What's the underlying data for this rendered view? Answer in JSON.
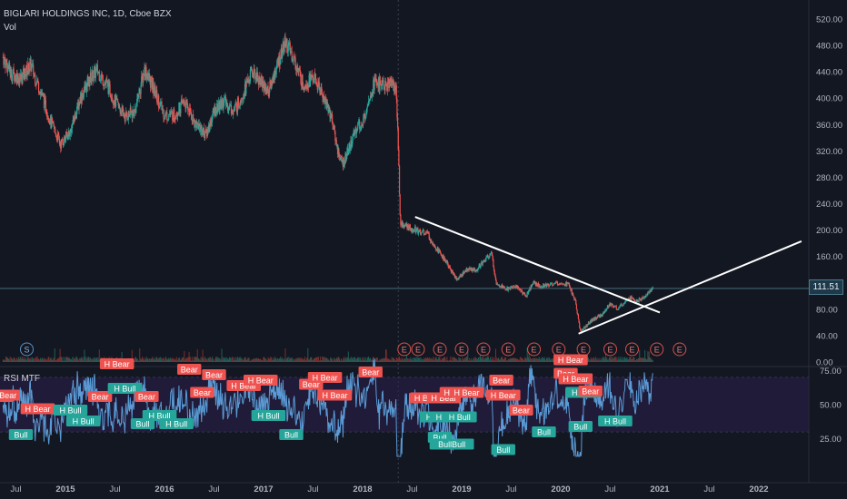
{
  "header": {
    "symbol_line": "BIGLARI HOLDINGS INC, 1D, Cboe BZX",
    "volume_label": "Vol"
  },
  "rsi_panel": {
    "title": "RSI MTF"
  },
  "last_price": "111.51",
  "chart_data": [
    {
      "type": "candlestick",
      "title": "BIGLARI HOLDINGS INC, 1D, Cboe BZX",
      "y_axis": {
        "ticks": [
          "0.00",
          "40.00",
          "80.00",
          "120.00",
          "160.00",
          "200.00",
          "240.00",
          "280.00",
          "320.00",
          "360.00",
          "400.00",
          "440.00",
          "480.00",
          "520.00"
        ],
        "range": [
          0,
          525
        ]
      },
      "x_axis": {
        "ticks": [
          "Jul",
          "2015",
          "Jul",
          "2016",
          "Jul",
          "2017",
          "Jul",
          "2018",
          "Jul",
          "2019",
          "Jul",
          "2020",
          "Jul",
          "2021",
          "Jul",
          "2022"
        ]
      },
      "price_path": [
        {
          "t": 2014.37,
          "p": 462
        },
        {
          "t": 2014.45,
          "p": 438
        },
        {
          "t": 2014.55,
          "p": 430
        },
        {
          "t": 2014.65,
          "p": 450
        },
        {
          "t": 2014.75,
          "p": 410
        },
        {
          "t": 2014.85,
          "p": 365
        },
        {
          "t": 2014.95,
          "p": 330
        },
        {
          "t": 2015.05,
          "p": 350
        },
        {
          "t": 2015.15,
          "p": 400
        },
        {
          "t": 2015.25,
          "p": 430
        },
        {
          "t": 2015.32,
          "p": 442
        },
        {
          "t": 2015.42,
          "p": 420
        },
        {
          "t": 2015.5,
          "p": 395
        },
        {
          "t": 2015.6,
          "p": 372
        },
        {
          "t": 2015.7,
          "p": 380
        },
        {
          "t": 2015.8,
          "p": 445
        },
        {
          "t": 2015.9,
          "p": 410
        },
        {
          "t": 2016.0,
          "p": 375
        },
        {
          "t": 2016.1,
          "p": 375
        },
        {
          "t": 2016.2,
          "p": 395
        },
        {
          "t": 2016.3,
          "p": 365
        },
        {
          "t": 2016.42,
          "p": 345
        },
        {
          "t": 2016.5,
          "p": 380
        },
        {
          "t": 2016.6,
          "p": 395
        },
        {
          "t": 2016.7,
          "p": 380
        },
        {
          "t": 2016.8,
          "p": 410
        },
        {
          "t": 2016.88,
          "p": 440
        },
        {
          "t": 2016.95,
          "p": 430
        },
        {
          "t": 2017.05,
          "p": 410
        },
        {
          "t": 2017.15,
          "p": 455
        },
        {
          "t": 2017.22,
          "p": 485
        },
        {
          "t": 2017.3,
          "p": 462
        },
        {
          "t": 2017.4,
          "p": 420
        },
        {
          "t": 2017.5,
          "p": 432
        },
        {
          "t": 2017.58,
          "p": 410
        },
        {
          "t": 2017.68,
          "p": 375
        },
        {
          "t": 2017.75,
          "p": 320
        },
        {
          "t": 2017.8,
          "p": 300
        },
        {
          "t": 2017.88,
          "p": 330
        },
        {
          "t": 2017.95,
          "p": 360
        },
        {
          "t": 2018.0,
          "p": 358
        },
        {
          "t": 2018.05,
          "p": 395
        },
        {
          "t": 2018.12,
          "p": 425
        },
        {
          "t": 2018.22,
          "p": 418
        },
        {
          "t": 2018.3,
          "p": 425
        },
        {
          "t": 2018.34,
          "p": 410
        },
        {
          "t": 2018.36,
          "p": 330
        },
        {
          "t": 2018.37,
          "p": 270
        },
        {
          "t": 2018.38,
          "p": 210
        },
        {
          "t": 2018.45,
          "p": 205
        },
        {
          "t": 2018.55,
          "p": 200
        },
        {
          "t": 2018.65,
          "p": 195
        },
        {
          "t": 2018.75,
          "p": 172
        },
        {
          "t": 2018.85,
          "p": 150
        },
        {
          "t": 2018.95,
          "p": 125
        },
        {
          "t": 2019.05,
          "p": 140
        },
        {
          "t": 2019.15,
          "p": 140
        },
        {
          "t": 2019.25,
          "p": 158
        },
        {
          "t": 2019.3,
          "p": 165
        },
        {
          "t": 2019.35,
          "p": 120
        },
        {
          "t": 2019.45,
          "p": 110
        },
        {
          "t": 2019.55,
          "p": 115
        },
        {
          "t": 2019.65,
          "p": 100
        },
        {
          "t": 2019.72,
          "p": 120
        },
        {
          "t": 2019.8,
          "p": 115
        },
        {
          "t": 2019.9,
          "p": 118
        },
        {
          "t": 2020.0,
          "p": 120
        },
        {
          "t": 2020.08,
          "p": 118
        },
        {
          "t": 2020.15,
          "p": 90
        },
        {
          "t": 2020.2,
          "p": 45
        },
        {
          "t": 2020.3,
          "p": 62
        },
        {
          "t": 2020.4,
          "p": 70
        },
        {
          "t": 2020.5,
          "p": 88
        },
        {
          "t": 2020.58,
          "p": 80
        },
        {
          "t": 2020.68,
          "p": 98
        },
        {
          "t": 2020.78,
          "p": 92
        },
        {
          "t": 2020.86,
          "p": 100
        },
        {
          "t": 2020.93,
          "p": 112
        }
      ],
      "trendlines": [
        {
          "t1": 2018.53,
          "p1": 220,
          "t2": 2021.0,
          "p2": 75
        },
        {
          "t1": 2020.18,
          "p1": 43,
          "t2": 2022.43,
          "p2": 183
        }
      ],
      "earnings_markers": {
        "symbol": "E",
        "t": [
          2018.42,
          2018.56,
          2018.78,
          2019.0,
          2019.22,
          2019.47,
          2019.73,
          2019.98,
          2020.23,
          2020.5,
          2020.72,
          2020.97,
          2021.2
        ]
      },
      "split_marker": {
        "symbol": "S",
        "t": 2014.61
      }
    },
    {
      "type": "line",
      "title": "RSI MTF",
      "y_axis": {
        "ticks": [
          "25.00",
          "50.00",
          "75.00"
        ],
        "range": [
          0,
          95
        ],
        "band": [
          30,
          70
        ]
      },
      "labels": [
        {
          "text": "H Bear",
          "kind": "bear",
          "t": 2014.3,
          "v": 56
        },
        {
          "text": "Bear",
          "kind": "bear",
          "t": 2014.42,
          "v": 57
        },
        {
          "text": "H Bear",
          "kind": "bear",
          "t": 2014.72,
          "v": 47
        },
        {
          "text": "H Bull",
          "kind": "bull",
          "t": 2015.05,
          "v": 46
        },
        {
          "text": "H Bull",
          "kind": "bull",
          "t": 2015.18,
          "v": 38
        },
        {
          "text": "Bear",
          "kind": "bear",
          "t": 2015.35,
          "v": 56
        },
        {
          "text": "H Bear",
          "kind": "bear",
          "t": 2015.52,
          "v": 80
        },
        {
          "text": "H Bull",
          "kind": "bull",
          "t": 2015.6,
          "v": 62
        },
        {
          "text": "Bear",
          "kind": "bear",
          "t": 2015.82,
          "v": 56
        },
        {
          "text": "H Bull",
          "kind": "bull",
          "t": 2015.95,
          "v": 42
        },
        {
          "text": "Bull",
          "kind": "bull",
          "t": 2014.55,
          "v": 28
        },
        {
          "text": "Bull",
          "kind": "bull",
          "t": 2015.78,
          "v": 36
        },
        {
          "text": "H Bull",
          "kind": "bull",
          "t": 2016.12,
          "v": 36
        },
        {
          "text": "Bear",
          "kind": "bear",
          "t": 2016.25,
          "v": 76
        },
        {
          "text": "Bear",
          "kind": "bear",
          "t": 2016.38,
          "v": 59
        },
        {
          "text": "Bear",
          "kind": "bear",
          "t": 2016.5,
          "v": 72
        },
        {
          "text": "H Bear",
          "kind": "bear",
          "t": 2016.8,
          "v": 64
        },
        {
          "text": "H Bear",
          "kind": "bear",
          "t": 2016.97,
          "v": 68
        },
        {
          "text": "H Bull",
          "kind": "bull",
          "t": 2017.05,
          "v": 42
        },
        {
          "text": "Bull",
          "kind": "bull",
          "t": 2017.28,
          "v": 28
        },
        {
          "text": "Bear",
          "kind": "bear",
          "t": 2017.48,
          "v": 65
        },
        {
          "text": "H Bear",
          "kind": "bear",
          "t": 2017.62,
          "v": 70
        },
        {
          "text": "H Bear",
          "kind": "bear",
          "t": 2017.72,
          "v": 57
        },
        {
          "text": "Bear",
          "kind": "bear",
          "t": 2018.08,
          "v": 74
        },
        {
          "text": "Bull",
          "kind": "bull",
          "t": 2018.78,
          "v": 26
        },
        {
          "text": "H Bear",
          "kind": "bear",
          "t": 2018.65,
          "v": 55
        },
        {
          "text": "H Bear",
          "kind": "bear",
          "t": 2018.82,
          "v": 55
        },
        {
          "text": "H Bear",
          "kind": "bear",
          "t": 2018.95,
          "v": 59
        },
        {
          "text": "H Bear",
          "kind": "bear",
          "t": 2019.05,
          "v": 59
        },
        {
          "text": "H Bull",
          "kind": "bull",
          "t": 2018.75,
          "v": 41
        },
        {
          "text": "H Bull",
          "kind": "bull",
          "t": 2018.85,
          "v": 41
        },
        {
          "text": "BullBull",
          "kind": "bull",
          "t": 2018.9,
          "v": 21
        },
        {
          "text": "H Bull",
          "kind": "bull",
          "t": 2018.98,
          "v": 41
        },
        {
          "text": "Bear",
          "kind": "bear",
          "t": 2019.4,
          "v": 68
        },
        {
          "text": "H Bear",
          "kind": "bear",
          "t": 2019.42,
          "v": 57
        },
        {
          "text": "Bull",
          "kind": "bull",
          "t": 2019.42,
          "v": 17
        },
        {
          "text": "Bear",
          "kind": "bear",
          "t": 2019.6,
          "v": 46
        },
        {
          "text": "Bull",
          "kind": "bull",
          "t": 2019.83,
          "v": 30
        },
        {
          "text": "H Bear",
          "kind": "bear",
          "t": 2020.1,
          "v": 83
        },
        {
          "text": "Bear",
          "kind": "bear",
          "t": 2020.05,
          "v": 73
        },
        {
          "text": "H Bear",
          "kind": "bear",
          "t": 2020.15,
          "v": 69
        },
        {
          "text": "H Bull",
          "kind": "bull",
          "t": 2020.22,
          "v": 59
        },
        {
          "text": "Bear",
          "kind": "bear",
          "t": 2020.3,
          "v": 60
        },
        {
          "text": "H Bull",
          "kind": "bull",
          "t": 2020.55,
          "v": 38
        },
        {
          "text": "Bull",
          "kind": "bull",
          "t": 2020.2,
          "v": 34
        }
      ]
    }
  ]
}
